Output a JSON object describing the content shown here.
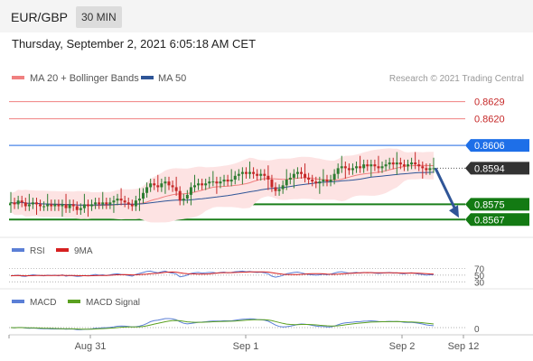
{
  "header": {
    "symbol": "EUR/GBP",
    "interval": "30 MIN",
    "datetime": "Thursday, September 2, 2021 6:05:18 AM CET"
  },
  "legend": {
    "ma20_label": "MA 20 + Bollinger Bands",
    "ma50_label": "MA 50",
    "research": "Research © 2021 Trading Central",
    "ma20_color": "#f08080",
    "ma50_color": "#2f5597"
  },
  "colors": {
    "up": "#2e7d32",
    "down": "#c62828",
    "resistance": "#f08080",
    "pivot": "#4a86e8",
    "support": "#1b7f1b",
    "last": "#333333",
    "arrow": "#2f5597",
    "rsi": "#5b7fd6",
    "rsi_ma": "#d62020",
    "macd": "#5b7fd6",
    "macd_signal": "#5aa020"
  },
  "chart_data": [
    {
      "type": "candlestick",
      "title": "EUR/GBP 30 MIN",
      "ylim": [
        0.856,
        0.8635
      ],
      "levels": {
        "resistance": [
          0.8629,
          0.862
        ],
        "pivot": 0.8606,
        "last": 0.8594,
        "support": [
          0.8575,
          0.8567
        ]
      },
      "level_labels": [
        "0.8629",
        "0.8620",
        "0.8606",
        "0.8594",
        "0.8575",
        "0.8567"
      ],
      "x_ticks": [
        "Aug 31",
        "Sep 1",
        "Sep 2",
        "Sep 12"
      ],
      "forecast": "down",
      "close": [
        0.8576,
        0.8575,
        0.8577,
        0.8576,
        0.8574,
        0.8575,
        0.8576,
        0.8575,
        0.8574,
        0.8574,
        0.8575,
        0.8574,
        0.8575,
        0.8574,
        0.8575,
        0.8573,
        0.8575,
        0.8574,
        0.8572,
        0.8573,
        0.8575,
        0.8574,
        0.8575,
        0.8576,
        0.8575,
        0.8576,
        0.8575,
        0.8576,
        0.8577,
        0.8578,
        0.8577,
        0.8576,
        0.8575,
        0.8574,
        0.8577,
        0.8578,
        0.8581,
        0.8584,
        0.8586,
        0.8585,
        0.8584,
        0.8586,
        0.8587,
        0.8585,
        0.8584,
        0.8582,
        0.8577,
        0.8578,
        0.858,
        0.8584,
        0.8585,
        0.8586,
        0.8585,
        0.8586,
        0.8587,
        0.8587,
        0.8586,
        0.8587,
        0.8588,
        0.8587,
        0.8588,
        0.859,
        0.8591,
        0.8592,
        0.8591,
        0.8592,
        0.8591,
        0.859,
        0.8591,
        0.859,
        0.8588,
        0.8584,
        0.8582,
        0.8583,
        0.8585,
        0.8588,
        0.8589,
        0.8591,
        0.8592,
        0.8591,
        0.8589,
        0.8588,
        0.8587,
        0.8586,
        0.8587,
        0.8588,
        0.8587,
        0.8588,
        0.8591,
        0.8594,
        0.8595,
        0.8594,
        0.8593,
        0.8594,
        0.8595,
        0.8594,
        0.8596,
        0.8595,
        0.8596,
        0.8595,
        0.8594,
        0.8595,
        0.8596,
        0.8597,
        0.8596,
        0.8597,
        0.8596,
        0.8595,
        0.8596,
        0.8597,
        0.8596,
        0.8595,
        0.8594,
        0.8593,
        0.8594,
        0.8594
      ],
      "rsi": {
        "name": "RSI",
        "ma_name": "9MA",
        "levels": [
          70,
          50,
          30
        ],
        "level_labels": [
          "70",
          "50",
          "30"
        ],
        "values": [
          48,
          49,
          50,
          47,
          46,
          49,
          51,
          50,
          49,
          48,
          50,
          49,
          50,
          48,
          51,
          47,
          49,
          48,
          46,
          47,
          49,
          48,
          50,
          52,
          50,
          51,
          49,
          51,
          53,
          54,
          52,
          51,
          49,
          47,
          52,
          55,
          58,
          61,
          62,
          59,
          57,
          60,
          62,
          58,
          56,
          53,
          45,
          47,
          50,
          55,
          57,
          58,
          56,
          57,
          58,
          58,
          56,
          58,
          59,
          57,
          58,
          60,
          61,
          62,
          60,
          61,
          59,
          58,
          59,
          57,
          54,
          47,
          44,
          46,
          49,
          54,
          56,
          58,
          59,
          57,
          54,
          52,
          51,
          50,
          51,
          53,
          51,
          53,
          56,
          59,
          60,
          58,
          56,
          57,
          58,
          56,
          58,
          57,
          58,
          56,
          55,
          56,
          57,
          58,
          56,
          57,
          55,
          54,
          56,
          57,
          55,
          53,
          52,
          50,
          51,
          51
        ]
      },
      "macd": {
        "name": "MACD",
        "signal_name": "MACD Signal",
        "zero_label": "0"
      }
    }
  ]
}
